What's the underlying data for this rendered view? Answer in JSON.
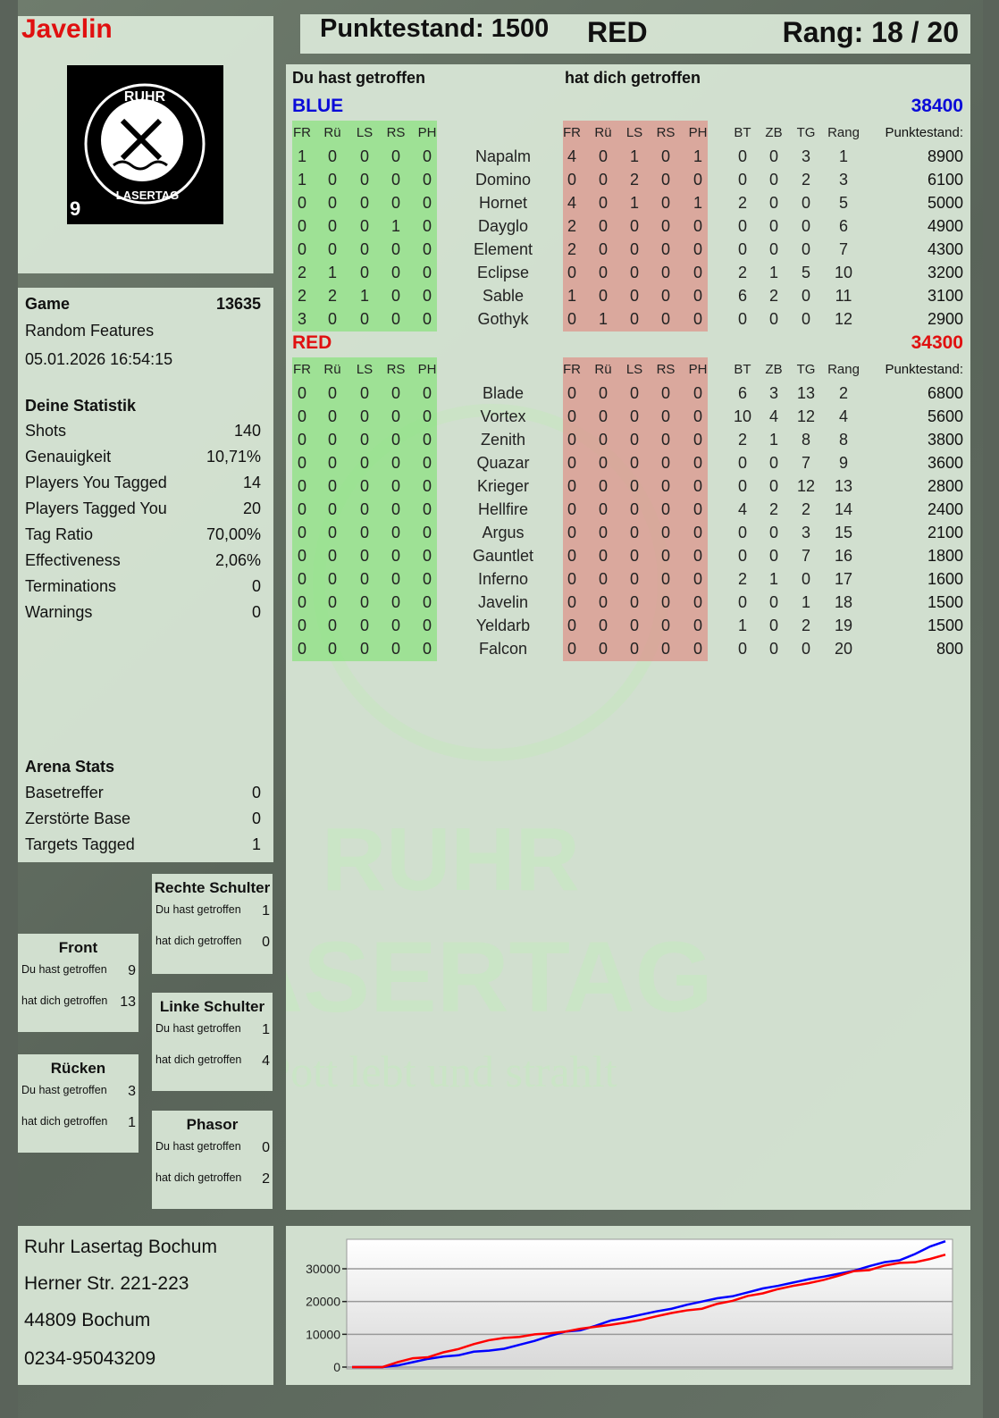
{
  "header": {
    "player": "Javelin",
    "score_label": "Punktestand: 1500",
    "team": "RED",
    "rank_label": "Rang: 18 / 20"
  },
  "logo": {
    "text": "RUHR LASERTAG",
    "number": "9"
  },
  "game": {
    "label": "Game",
    "id": "13635",
    "mode": "Random Features",
    "datetime": "05.01.2026 16:54:15"
  },
  "stats": {
    "title": "Deine Statistik",
    "items": [
      {
        "label": "Shots",
        "value": "140"
      },
      {
        "label": "Genauigkeit",
        "value": "10,71%"
      },
      {
        "label": "Players You Tagged",
        "value": "14"
      },
      {
        "label": "Players Tagged You",
        "value": "20"
      },
      {
        "label": "Tag Ratio",
        "value": "70,00%"
      },
      {
        "label": "Effectiveness",
        "value": "2,06%"
      },
      {
        "label": "Terminations",
        "value": "0"
      },
      {
        "label": "Warnings",
        "value": "0"
      }
    ]
  },
  "arena": {
    "title": "Arena Stats",
    "items": [
      {
        "label": "Basetreffer",
        "value": "0"
      },
      {
        "label": "Zerstörte Base",
        "value": "0"
      },
      {
        "label": "Targets Tagged",
        "value": "1"
      }
    ]
  },
  "zones": [
    {
      "title": "Rechte Schulter",
      "you_hit_label": "Du hast getroffen",
      "you_hit": "1",
      "hit_you_label": "hat dich getroffen",
      "hit_you": "0"
    },
    {
      "title": "Front",
      "you_hit_label": "Du hast getroffen",
      "you_hit": "9",
      "hit_you_label": "hat dich getroffen",
      "hit_you": "13"
    },
    {
      "title": "Linke Schulter",
      "you_hit_label": "Du hast getroffen",
      "you_hit": "1",
      "hit_you_label": "hat dich getroffen",
      "hit_you": "4"
    },
    {
      "title": "Rücken",
      "you_hit_label": "Du hast getroffen",
      "you_hit": "3",
      "hit_you_label": "hat dich getroffen",
      "hit_you": "1"
    },
    {
      "title": "Phasor",
      "you_hit_label": "Du hast getroffen",
      "you_hit": "0",
      "hit_you_label": "hat dich getroffen",
      "hit_you": "2"
    }
  ],
  "address": [
    "Ruhr Lasertag Bochum",
    "Herner Str. 221-223",
    "44809 Bochum",
    "0234-95043209"
  ],
  "table": {
    "you_hit_title": "Du hast getroffen",
    "hit_you_title": "hat dich getroffen",
    "hit_columns": [
      "FR",
      "Rü",
      "LS",
      "RS",
      "PH"
    ],
    "stat_columns": [
      "BT",
      "ZB",
      "TG",
      "Rang"
    ],
    "score_column": "Punktestand:",
    "teams": [
      {
        "name": "BLUE",
        "total": "38400",
        "color": "#0a0ad8",
        "players": [
          {
            "name": "Napalm",
            "you": [
              1,
              0,
              0,
              0,
              0
            ],
            "them": [
              4,
              0,
              1,
              0,
              1
            ],
            "stats": [
              0,
              0,
              3,
              1
            ],
            "score": 8900
          },
          {
            "name": "Domino",
            "you": [
              1,
              0,
              0,
              0,
              0
            ],
            "them": [
              0,
              0,
              2,
              0,
              0
            ],
            "stats": [
              0,
              0,
              2,
              3
            ],
            "score": 6100
          },
          {
            "name": "Hornet",
            "you": [
              0,
              0,
              0,
              0,
              0
            ],
            "them": [
              4,
              0,
              1,
              0,
              1
            ],
            "stats": [
              2,
              0,
              0,
              5
            ],
            "score": 5000
          },
          {
            "name": "Dayglo",
            "you": [
              0,
              0,
              0,
              1,
              0
            ],
            "them": [
              2,
              0,
              0,
              0,
              0
            ],
            "stats": [
              0,
              0,
              0,
              6
            ],
            "score": 4900
          },
          {
            "name": "Element",
            "you": [
              0,
              0,
              0,
              0,
              0
            ],
            "them": [
              2,
              0,
              0,
              0,
              0
            ],
            "stats": [
              0,
              0,
              0,
              7
            ],
            "score": 4300
          },
          {
            "name": "Eclipse",
            "you": [
              2,
              1,
              0,
              0,
              0
            ],
            "them": [
              0,
              0,
              0,
              0,
              0
            ],
            "stats": [
              2,
              1,
              5,
              10
            ],
            "score": 3200
          },
          {
            "name": "Sable",
            "you": [
              2,
              2,
              1,
              0,
              0
            ],
            "them": [
              1,
              0,
              0,
              0,
              0
            ],
            "stats": [
              6,
              2,
              0,
              11
            ],
            "score": 3100
          },
          {
            "name": "Gothyk",
            "you": [
              3,
              0,
              0,
              0,
              0
            ],
            "them": [
              0,
              1,
              0,
              0,
              0
            ],
            "stats": [
              0,
              0,
              0,
              12
            ],
            "score": 2900
          }
        ]
      },
      {
        "name": "RED",
        "total": "34300",
        "color": "#e01010",
        "players": [
          {
            "name": "Blade",
            "you": [
              0,
              0,
              0,
              0,
              0
            ],
            "them": [
              0,
              0,
              0,
              0,
              0
            ],
            "stats": [
              6,
              3,
              13,
              2
            ],
            "score": 6800
          },
          {
            "name": "Vortex",
            "you": [
              0,
              0,
              0,
              0,
              0
            ],
            "them": [
              0,
              0,
              0,
              0,
              0
            ],
            "stats": [
              10,
              4,
              12,
              4
            ],
            "score": 5600
          },
          {
            "name": "Zenith",
            "you": [
              0,
              0,
              0,
              0,
              0
            ],
            "them": [
              0,
              0,
              0,
              0,
              0
            ],
            "stats": [
              2,
              1,
              8,
              8
            ],
            "score": 3800
          },
          {
            "name": "Quazar",
            "you": [
              0,
              0,
              0,
              0,
              0
            ],
            "them": [
              0,
              0,
              0,
              0,
              0
            ],
            "stats": [
              0,
              0,
              7,
              9
            ],
            "score": 3600
          },
          {
            "name": "Krieger",
            "you": [
              0,
              0,
              0,
              0,
              0
            ],
            "them": [
              0,
              0,
              0,
              0,
              0
            ],
            "stats": [
              0,
              0,
              12,
              13
            ],
            "score": 2800
          },
          {
            "name": "Hellfire",
            "you": [
              0,
              0,
              0,
              0,
              0
            ],
            "them": [
              0,
              0,
              0,
              0,
              0
            ],
            "stats": [
              4,
              2,
              2,
              14
            ],
            "score": 2400
          },
          {
            "name": "Argus",
            "you": [
              0,
              0,
              0,
              0,
              0
            ],
            "them": [
              0,
              0,
              0,
              0,
              0
            ],
            "stats": [
              0,
              0,
              3,
              15
            ],
            "score": 2100
          },
          {
            "name": "Gauntlet",
            "you": [
              0,
              0,
              0,
              0,
              0
            ],
            "them": [
              0,
              0,
              0,
              0,
              0
            ],
            "stats": [
              0,
              0,
              7,
              16
            ],
            "score": 1800
          },
          {
            "name": "Inferno",
            "you": [
              0,
              0,
              0,
              0,
              0
            ],
            "them": [
              0,
              0,
              0,
              0,
              0
            ],
            "stats": [
              2,
              1,
              0,
              17
            ],
            "score": 1600
          },
          {
            "name": "Javelin",
            "you": [
              0,
              0,
              0,
              0,
              0
            ],
            "them": [
              0,
              0,
              0,
              0,
              0
            ],
            "stats": [
              0,
              0,
              1,
              18
            ],
            "score": 1500
          },
          {
            "name": "Yeldarb",
            "you": [
              0,
              0,
              0,
              0,
              0
            ],
            "them": [
              0,
              0,
              0,
              0,
              0
            ],
            "stats": [
              1,
              0,
              2,
              19
            ],
            "score": 1500
          },
          {
            "name": "Falcon",
            "you": [
              0,
              0,
              0,
              0,
              0
            ],
            "them": [
              0,
              0,
              0,
              0,
              0
            ],
            "stats": [
              0,
              0,
              0,
              20
            ],
            "score": 800
          }
        ]
      }
    ]
  },
  "watermark": {
    "line1": "RUHR",
    "line2": "LASERTAG",
    "slogan": "Der Pott lebt und strahlt"
  },
  "chart_data": {
    "type": "line",
    "ylim": [
      0,
      39000
    ],
    "yticks": [
      0,
      10000,
      20000,
      30000
    ],
    "grid": true,
    "series": [
      {
        "color": "#0000ff",
        "values": [
          0,
          0,
          0,
          500,
          1500,
          2500,
          3200,
          3600,
          4700,
          5000,
          5600,
          6800,
          8000,
          9500,
          10800,
          11200,
          12600,
          14200,
          15000,
          16000,
          17000,
          17800,
          19000,
          20000,
          21000,
          21600,
          22800,
          24000,
          24800,
          25800,
          26800,
          27600,
          28500,
          29400,
          30800,
          32000,
          32600,
          34500,
          36800,
          38400
        ]
      },
      {
        "color": "#ff0000",
        "values": [
          0,
          0,
          0,
          1500,
          2700,
          3000,
          4500,
          5500,
          7000,
          8200,
          8900,
          9200,
          10000,
          10300,
          10800,
          11700,
          12300,
          12900,
          13600,
          14400,
          15500,
          16500,
          17300,
          17800,
          19300,
          20200,
          21700,
          22500,
          23800,
          24800,
          25600,
          26600,
          27900,
          29300,
          29600,
          31000,
          31800,
          32000,
          33000,
          34300
        ]
      }
    ]
  }
}
